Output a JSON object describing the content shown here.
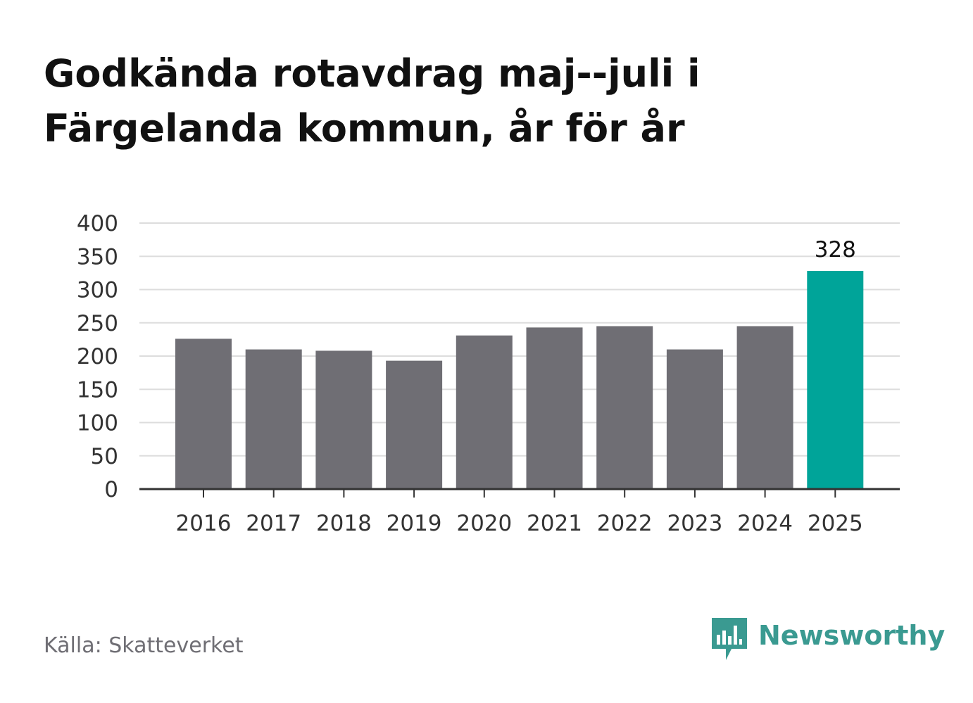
{
  "title_lines": [
    "Godkända rotavdrag maj--juli i",
    "Färgelanda kommun, år för år"
  ],
  "source": "Källa: Skatteverket",
  "brand": {
    "name": "Newsworthy",
    "logo_icon": "bar-chart-speech-bubble-icon",
    "color": "#3a9a91"
  },
  "colors": {
    "bar_default": "#6f6e74",
    "bar_highlight": "#00a499",
    "grid": "#dddddd",
    "axis": "#333333"
  },
  "chart_data": {
    "type": "bar",
    "title": "Godkända rotavdrag maj--juli i Färgelanda kommun, år för år",
    "xlabel": "",
    "ylabel": "",
    "categories": [
      "2016",
      "2017",
      "2018",
      "2019",
      "2020",
      "2021",
      "2022",
      "2023",
      "2024",
      "2025"
    ],
    "values": [
      226,
      210,
      208,
      193,
      231,
      243,
      245,
      210,
      245,
      328
    ],
    "ylim": [
      0,
      400
    ],
    "yticks": [
      0,
      50,
      100,
      150,
      200,
      250,
      300,
      350,
      400
    ],
    "highlight_index": 9,
    "data_labels": [
      {
        "index": 9,
        "text": "328"
      }
    ],
    "grid": true,
    "legend": "none"
  }
}
